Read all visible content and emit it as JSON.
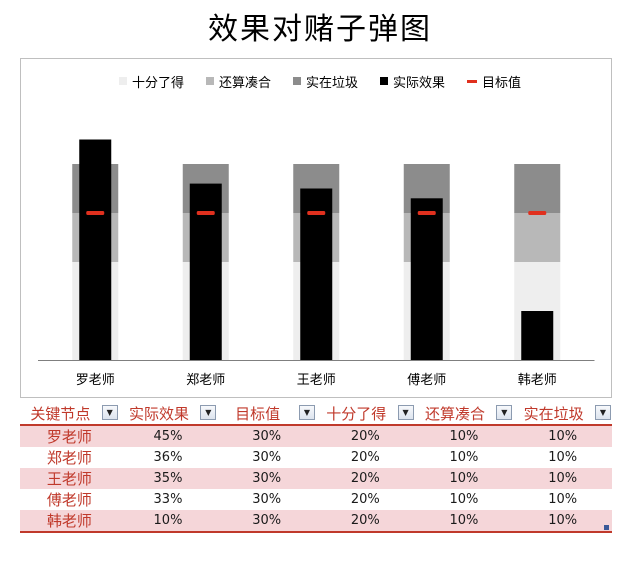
{
  "title": "效果对赌子弹图",
  "legend": [
    {
      "label": "十分了得",
      "color": "#eeeeee",
      "kind": "box"
    },
    {
      "label": "还算凑合",
      "color": "#b8b8b8",
      "kind": "box"
    },
    {
      "label": "实在垃圾",
      "color": "#8c8c8c",
      "kind": "box"
    },
    {
      "label": "实际效果",
      "color": "#000000",
      "kind": "box"
    },
    {
      "label": "目标值",
      "color": "#e0301e",
      "kind": "line"
    }
  ],
  "chart_data": {
    "type": "bar",
    "subtype": "bullet",
    "title": "效果对赌子弹图",
    "categories": [
      "罗老师",
      "郑老师",
      "王老师",
      "傅老师",
      "韩老师"
    ],
    "stack_order_bottom_to_top": [
      "十分了得",
      "还算凑合",
      "实在垃圾"
    ],
    "series": [
      {
        "name": "实际效果",
        "values": [
          45,
          36,
          35,
          33,
          10
        ]
      },
      {
        "name": "目标值",
        "values": [
          30,
          30,
          30,
          30,
          30
        ]
      },
      {
        "name": "十分了得",
        "values": [
          20,
          20,
          20,
          20,
          20
        ]
      },
      {
        "name": "还算凑合",
        "values": [
          10,
          10,
          10,
          10,
          10
        ]
      },
      {
        "name": "实在垃圾",
        "values": [
          10,
          10,
          10,
          10,
          10
        ]
      }
    ],
    "ylim": [
      0,
      45
    ],
    "legend_position": "top",
    "grid": false
  },
  "table": {
    "headers": [
      "关键节点",
      "实际效果",
      "目标值",
      "十分了得",
      "还算凑合",
      "实在垃圾"
    ],
    "filter_glyph": "▼",
    "rows": [
      [
        "罗老师",
        "45%",
        "30%",
        "20%",
        "10%",
        "10%"
      ],
      [
        "郑老师",
        "36%",
        "30%",
        "20%",
        "10%",
        "10%"
      ],
      [
        "王老师",
        "35%",
        "30%",
        "20%",
        "10%",
        "10%"
      ],
      [
        "傅老师",
        "33%",
        "30%",
        "20%",
        "10%",
        "10%"
      ],
      [
        "韩老师",
        "10%",
        "30%",
        "20%",
        "10%",
        "10%"
      ]
    ]
  }
}
